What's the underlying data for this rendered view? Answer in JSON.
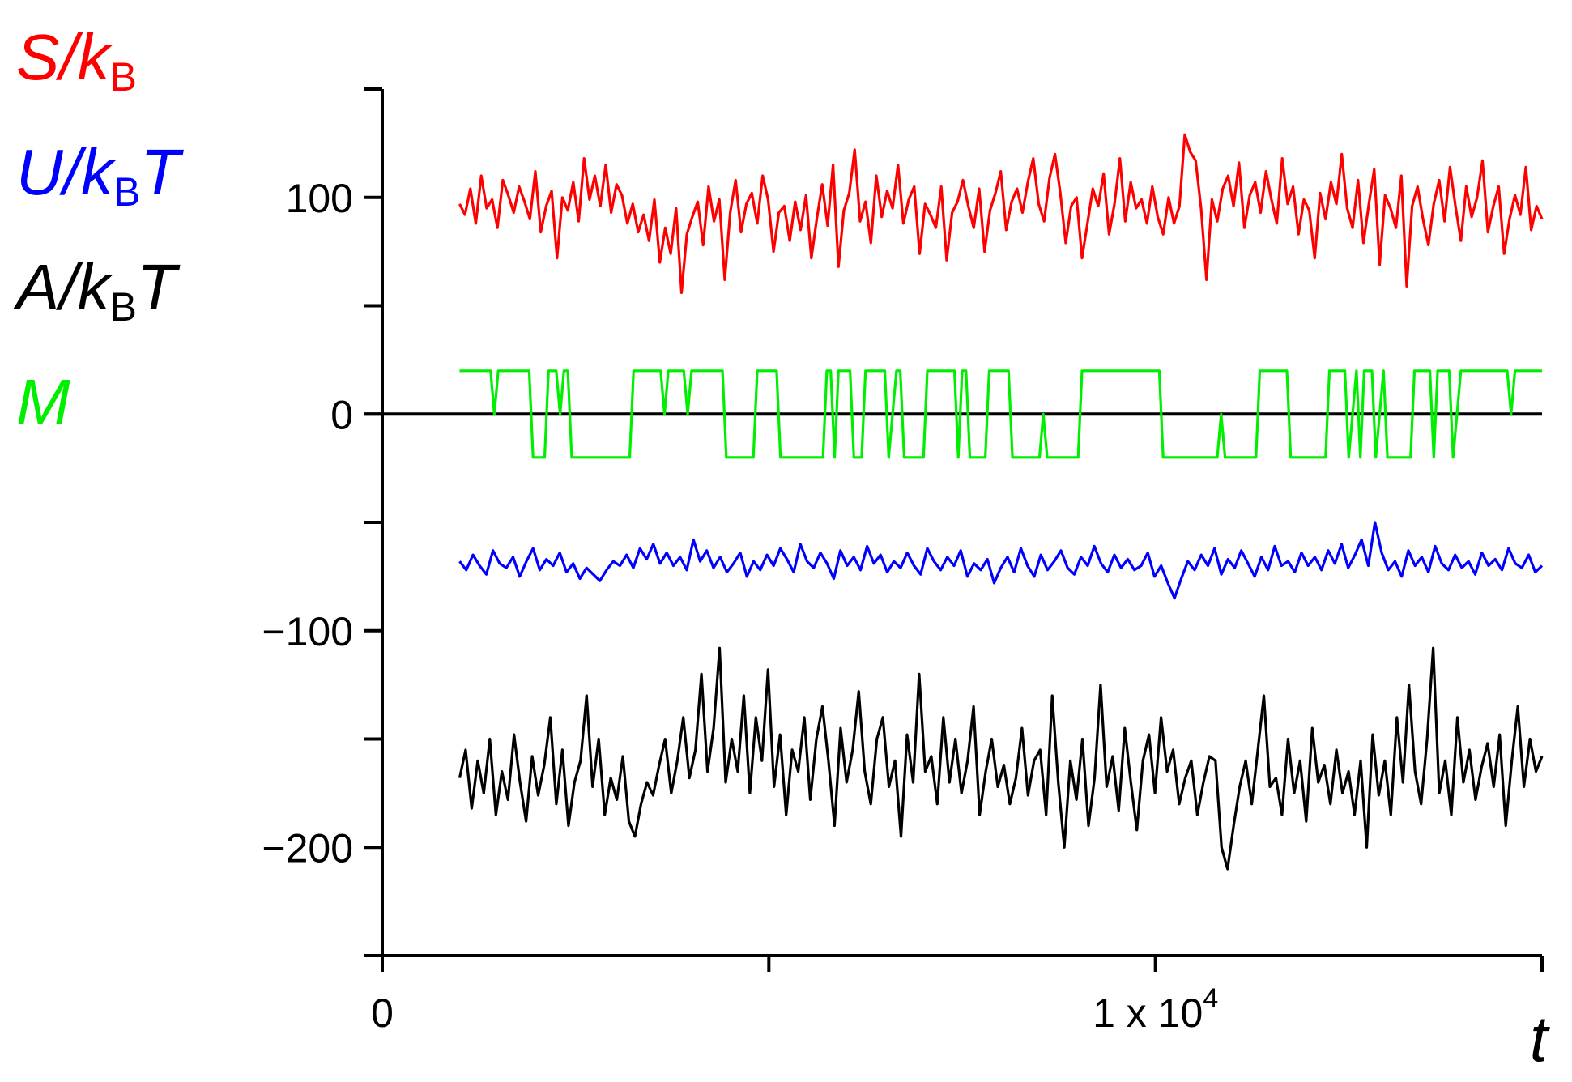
{
  "chart_data": {
    "type": "line",
    "x_axis": {
      "label": "t",
      "range": [
        0,
        15000
      ],
      "major_ticks": [
        0,
        5000,
        10000,
        15000
      ],
      "tick_labels": [
        {
          "value": 0,
          "mantissa": "0",
          "exponent": ""
        },
        {
          "value": 10000,
          "mantissa": "1 x 10",
          "exponent": "4"
        }
      ]
    },
    "y_axis": {
      "range": [
        -250,
        150
      ],
      "major_ticks": [
        -250,
        -200,
        -150,
        -100,
        -50,
        0,
        50,
        100,
        150
      ],
      "tick_labels": [
        {
          "value": 100,
          "text": "100"
        },
        {
          "value": 0,
          "text": "0"
        },
        {
          "value": -100,
          "text": "−100"
        },
        {
          "value": -200,
          "text": "−200"
        }
      ]
    },
    "zero_line": true,
    "grid": false,
    "legend_position": "left",
    "series": [
      {
        "name": "S/k_B",
        "legend": {
          "prefix": "S/k",
          "sub": "B",
          "suffix": ""
        },
        "color": "#ff0000",
        "x_start": 1000,
        "x_end": 15000,
        "values": [
          97,
          92,
          104,
          88,
          110,
          95,
          99,
          86,
          108,
          101,
          93,
          105,
          98,
          90,
          112,
          84,
          96,
          103,
          72,
          100,
          94,
          107,
          89,
          118,
          99,
          110,
          96,
          115,
          93,
          106,
          101,
          88,
          97,
          84,
          92,
          80,
          99,
          70,
          86,
          74,
          95,
          56,
          83,
          91,
          98,
          78,
          105,
          89,
          99,
          62,
          93,
          108,
          84,
          97,
          102,
          88,
          110,
          99,
          75,
          93,
          96,
          80,
          98,
          85,
          101,
          72,
          90,
          106,
          87,
          115,
          68,
          94,
          102,
          122,
          89,
          98,
          79,
          110,
          91,
          103,
          95,
          115,
          88,
          99,
          105,
          74,
          97,
          92,
          86,
          105,
          71,
          93,
          98,
          108,
          96,
          86,
          104,
          75,
          94,
          102,
          112,
          85,
          98,
          104,
          93,
          107,
          118,
          97,
          89,
          109,
          120,
          102,
          79,
          96,
          100,
          72,
          88,
          104,
          96,
          111,
          83,
          97,
          118,
          89,
          107,
          95,
          99,
          88,
          105,
          91,
          83,
          100,
          88,
          96,
          129,
          121,
          117,
          95,
          62,
          99,
          89,
          104,
          110,
          96,
          116,
          86,
          101,
          107,
          93,
          112,
          99,
          88,
          118,
          97,
          105,
          83,
          99,
          94,
          72,
          102,
          90,
          107,
          97,
          120,
          95,
          86,
          108,
          79,
          97,
          113,
          69,
          101,
          95,
          86,
          110,
          59,
          96,
          105,
          90,
          78,
          97,
          108,
          89,
          114,
          96,
          80,
          105,
          91,
          100,
          117,
          84,
          96,
          105,
          74,
          90,
          101,
          92,
          114,
          85,
          96,
          90
        ]
      },
      {
        "name": "U/k_B T",
        "legend": {
          "prefix": "U/k",
          "sub": "B",
          "suffix": "T"
        },
        "color": "#0000ff",
        "x_start": 1000,
        "x_end": 15000,
        "values": [
          -68,
          -72,
          -65,
          -70,
          -74,
          -63,
          -69,
          -71,
          -66,
          -75,
          -68,
          -62,
          -72,
          -67,
          -70,
          -64,
          -73,
          -69,
          -76,
          -71,
          -74,
          -77,
          -72,
          -68,
          -70,
          -65,
          -71,
          -62,
          -67,
          -60,
          -69,
          -64,
          -70,
          -66,
          -72,
          -58,
          -68,
          -63,
          -71,
          -66,
          -73,
          -69,
          -64,
          -75,
          -68,
          -72,
          -65,
          -70,
          -62,
          -67,
          -73,
          -60,
          -68,
          -71,
          -64,
          -69,
          -76,
          -63,
          -70,
          -66,
          -72,
          -61,
          -69,
          -65,
          -73,
          -68,
          -71,
          -64,
          -70,
          -74,
          -62,
          -68,
          -72,
          -66,
          -70,
          -63,
          -75,
          -69,
          -72,
          -67,
          -78,
          -71,
          -66,
          -73,
          -62,
          -70,
          -75,
          -65,
          -72,
          -68,
          -63,
          -71,
          -74,
          -66,
          -70,
          -61,
          -69,
          -73,
          -65,
          -71,
          -67,
          -72,
          -70,
          -64,
          -75,
          -70,
          -78,
          -85,
          -76,
          -68,
          -72,
          -65,
          -70,
          -62,
          -74,
          -67,
          -71,
          -63,
          -69,
          -75,
          -66,
          -72,
          -61,
          -70,
          -68,
          -73,
          -64,
          -70,
          -66,
          -72,
          -63,
          -69,
          -60,
          -71,
          -65,
          -58,
          -70,
          -50,
          -64,
          -72,
          -68,
          -75,
          -63,
          -70,
          -66,
          -73,
          -61,
          -69,
          -72,
          -65,
          -71,
          -68,
          -74,
          -64,
          -70,
          -67,
          -72,
          -62,
          -69,
          -71,
          -65,
          -73,
          -70
        ]
      },
      {
        "name": "A/k_B T",
        "legend": {
          "prefix": "A/k",
          "sub": "B",
          "suffix": "T"
        },
        "color": "#000000",
        "x_start": 1000,
        "x_end": 15000,
        "values": [
          -168,
          -155,
          -182,
          -160,
          -175,
          -150,
          -185,
          -165,
          -178,
          -148,
          -170,
          -188,
          -158,
          -176,
          -162,
          -140,
          -180,
          -155,
          -190,
          -170,
          -160,
          -130,
          -172,
          -150,
          -185,
          -168,
          -178,
          -158,
          -188,
          -195,
          -180,
          -170,
          -176,
          -162,
          -150,
          -175,
          -160,
          -140,
          -168,
          -155,
          -120,
          -165,
          -145,
          -108,
          -170,
          -150,
          -165,
          -130,
          -175,
          -140,
          -160,
          -118,
          -172,
          -148,
          -185,
          -155,
          -165,
          -140,
          -178,
          -150,
          -135,
          -160,
          -190,
          -145,
          -170,
          -155,
          -128,
          -165,
          -180,
          -150,
          -140,
          -172,
          -160,
          -195,
          -148,
          -170,
          -120,
          -165,
          -158,
          -180,
          -140,
          -170,
          -150,
          -175,
          -160,
          -135,
          -185,
          -165,
          -150,
          -172,
          -162,
          -180,
          -168,
          -145,
          -176,
          -160,
          -155,
          -185,
          -130,
          -170,
          -200,
          -160,
          -178,
          -150,
          -190,
          -168,
          -125,
          -172,
          -158,
          -183,
          -145,
          -170,
          -192,
          -160,
          -148,
          -175,
          -140,
          -165,
          -155,
          -180,
          -168,
          -160,
          -185,
          -170,
          -158,
          -160,
          -200,
          -210,
          -190,
          -172,
          -160,
          -180,
          -155,
          -130,
          -172,
          -168,
          -185,
          -150,
          -175,
          -160,
          -188,
          -145,
          -170,
          -162,
          -180,
          -155,
          -175,
          -165,
          -185,
          -160,
          -200,
          -148,
          -176,
          -160,
          -185,
          -140,
          -170,
          -125,
          -165,
          -180,
          -150,
          -108,
          -175,
          -160,
          -185,
          -140,
          -170,
          -155,
          -178,
          -163,
          -152,
          -172,
          -148,
          -190,
          -160,
          -135,
          -172,
          -150,
          -165,
          -158
        ]
      },
      {
        "name": "M",
        "legend": {
          "prefix": "M",
          "sub": "",
          "suffix": ""
        },
        "color": "#00ee00",
        "step": true,
        "levels": [
          20,
          -20
        ],
        "steps": [
          [
            1000,
            20
          ],
          [
            1400,
            20
          ],
          [
            1450,
            0
          ],
          [
            1500,
            20
          ],
          [
            1900,
            20
          ],
          [
            1950,
            -20
          ],
          [
            2100,
            -20
          ],
          [
            2150,
            20
          ],
          [
            2250,
            20
          ],
          [
            2300,
            0
          ],
          [
            2350,
            20
          ],
          [
            2400,
            20
          ],
          [
            2450,
            -20
          ],
          [
            3200,
            -20
          ],
          [
            3250,
            20
          ],
          [
            3600,
            20
          ],
          [
            3650,
            0
          ],
          [
            3700,
            20
          ],
          [
            3900,
            20
          ],
          [
            3950,
            0
          ],
          [
            4000,
            20
          ],
          [
            4400,
            20
          ],
          [
            4450,
            -20
          ],
          [
            4800,
            -20
          ],
          [
            4850,
            20
          ],
          [
            5100,
            20
          ],
          [
            5150,
            -20
          ],
          [
            5700,
            -20
          ],
          [
            5750,
            20
          ],
          [
            5800,
            20
          ],
          [
            5850,
            -20
          ],
          [
            5900,
            20
          ],
          [
            6050,
            20
          ],
          [
            6100,
            -20
          ],
          [
            6200,
            -20
          ],
          [
            6250,
            20
          ],
          [
            6500,
            20
          ],
          [
            6550,
            -20
          ],
          [
            6650,
            20
          ],
          [
            6700,
            20
          ],
          [
            6750,
            -20
          ],
          [
            7000,
            -20
          ],
          [
            7050,
            20
          ],
          [
            7400,
            20
          ],
          [
            7450,
            -20
          ],
          [
            7500,
            20
          ],
          [
            7550,
            20
          ],
          [
            7600,
            -20
          ],
          [
            7800,
            -20
          ],
          [
            7850,
            20
          ],
          [
            8100,
            20
          ],
          [
            8150,
            -20
          ],
          [
            8500,
            -20
          ],
          [
            8550,
            0
          ],
          [
            8600,
            -20
          ],
          [
            9000,
            -20
          ],
          [
            9050,
            20
          ],
          [
            10050,
            20
          ],
          [
            10100,
            -20
          ],
          [
            10800,
            -20
          ],
          [
            10850,
            0
          ],
          [
            10900,
            -20
          ],
          [
            11300,
            -20
          ],
          [
            11350,
            20
          ],
          [
            11700,
            20
          ],
          [
            11750,
            -20
          ],
          [
            12200,
            -20
          ],
          [
            12250,
            20
          ],
          [
            12450,
            20
          ],
          [
            12500,
            -20
          ],
          [
            12600,
            20
          ],
          [
            12650,
            -20
          ],
          [
            12700,
            20
          ],
          [
            12800,
            20
          ],
          [
            12850,
            -20
          ],
          [
            12950,
            20
          ],
          [
            13000,
            -20
          ],
          [
            13300,
            -20
          ],
          [
            13350,
            20
          ],
          [
            13550,
            20
          ],
          [
            13600,
            -20
          ],
          [
            13650,
            20
          ],
          [
            13800,
            20
          ],
          [
            13850,
            -20
          ],
          [
            13900,
            0
          ],
          [
            13950,
            20
          ],
          [
            14550,
            20
          ],
          [
            14600,
            0
          ],
          [
            14650,
            20
          ],
          [
            15000,
            20
          ]
        ]
      }
    ]
  }
}
